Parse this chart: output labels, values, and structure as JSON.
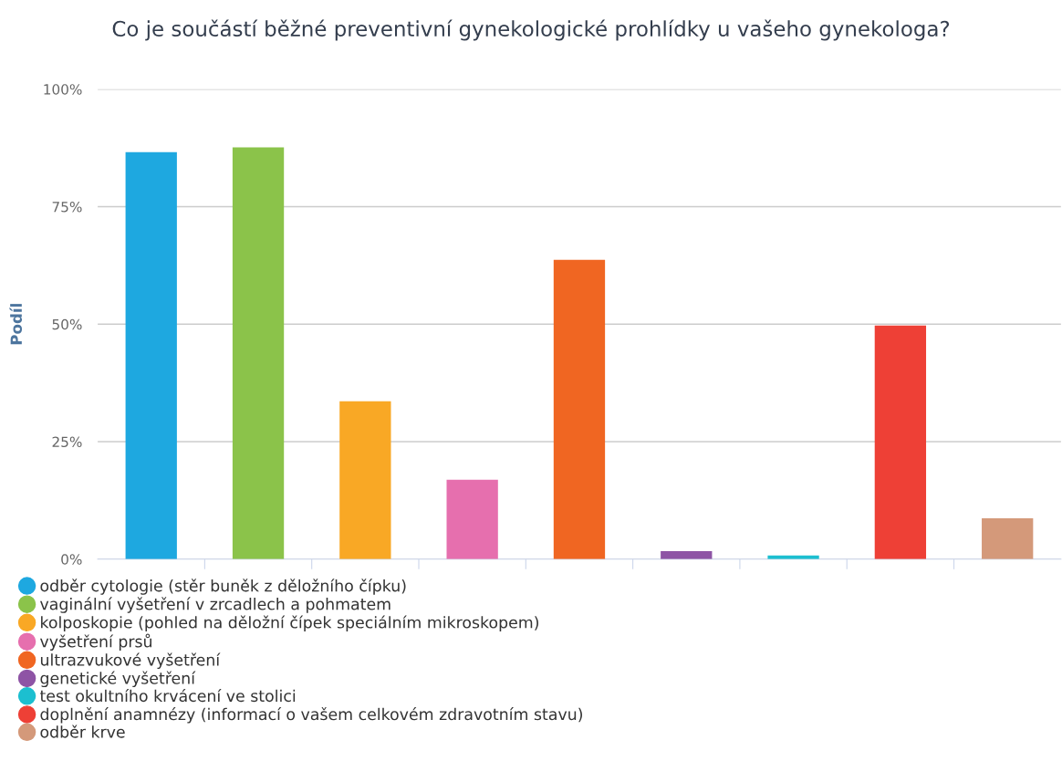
{
  "chart_data": {
    "type": "bar",
    "title": "Co je součástí běžné preventivní gynekologické prohlídky u vašeho gynekologa?",
    "ylabel": "Podíl",
    "categories": [
      null,
      null,
      null,
      null,
      null,
      null,
      null,
      null,
      null
    ],
    "series": [
      {
        "name": "odběr cytologie (stěr buněk z děložního čípku)",
        "color": "#1ea8e0",
        "values": [
          86.6,
          null,
          null,
          null,
          null,
          null,
          null,
          null,
          null
        ]
      },
      {
        "name": "vaginální vyšetření v zrcadlech a pohmatem",
        "color": "#8bc34a",
        "values": [
          null,
          87.6,
          null,
          null,
          null,
          null,
          null,
          null,
          null
        ]
      },
      {
        "name": "kolposkopie (pohled na děložní čípek speciálním mikroskopem)",
        "color": "#f9a825",
        "values": [
          null,
          null,
          33.6,
          null,
          null,
          null,
          null,
          null,
          null
        ]
      },
      {
        "name": "vyšetření prsů",
        "color": "#e66fae",
        "values": [
          null,
          null,
          null,
          16.9,
          null,
          null,
          null,
          null,
          null
        ]
      },
      {
        "name": "ultrazvukové vyšetření",
        "color": "#f06622",
        "values": [
          null,
          null,
          null,
          null,
          63.7,
          null,
          null,
          null,
          null
        ]
      },
      {
        "name": "genetické vyšetření",
        "color": "#8e54a5",
        "values": [
          null,
          null,
          null,
          null,
          null,
          1.7,
          null,
          null,
          null
        ]
      },
      {
        "name": "test okultního krvácení ve stolici",
        "color": "#1cbfd0",
        "values": [
          null,
          null,
          null,
          null,
          null,
          null,
          0.8,
          null,
          null
        ]
      },
      {
        "name": "doplnění anamnézy (informací o vašem celkovém zdravotním stavu)",
        "color": "#ee4036",
        "values": [
          null,
          null,
          null,
          null,
          null,
          null,
          null,
          49.7,
          null
        ]
      },
      {
        "name": "odběr krve",
        "color": "#d4997a",
        "values": [
          null,
          null,
          null,
          null,
          null,
          null,
          null,
          null,
          8.7
        ]
      }
    ],
    "ylim": [
      0,
      100
    ],
    "yticks": [
      {
        "value": 0,
        "label": "0%"
      },
      {
        "value": 25,
        "label": "25%"
      },
      {
        "value": 50,
        "label": "50%"
      },
      {
        "value": 75,
        "label": "75%"
      },
      {
        "value": 100,
        "label": "100%"
      }
    ],
    "grid": "y",
    "legend": "bottom left",
    "tick_labels": "y"
  }
}
